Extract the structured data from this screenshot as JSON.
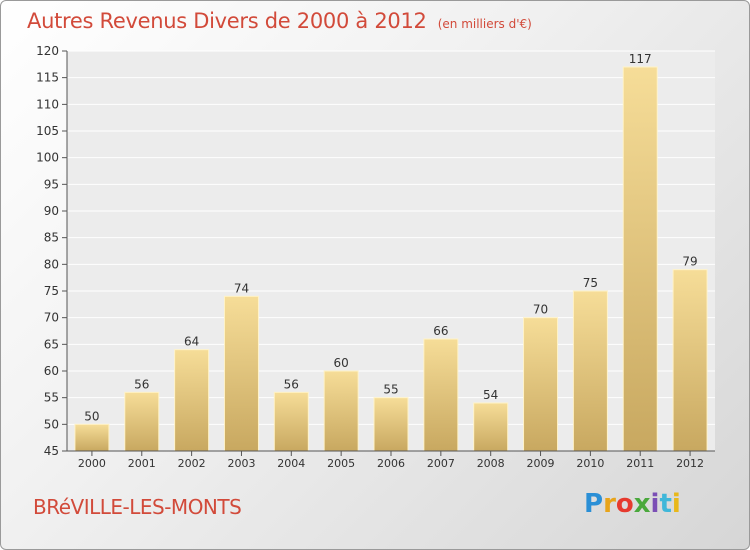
{
  "header": {
    "title": "Autres Revenus Divers de 2000 à 2012",
    "unit": "(en milliers d'€)"
  },
  "footer": {
    "location": "BRéVILLE-LES-MONTS",
    "logo_letters": [
      "P",
      "r",
      "o",
      "x",
      "i",
      "t",
      "i"
    ],
    "logo_colors": [
      "#2a8fd6",
      "#e8a41a",
      "#e63a2e",
      "#4aa83c",
      "#7b4fb5",
      "#3fb7d9",
      "#e8b81a"
    ]
  },
  "colors": {
    "bar_light": "#f6dd98",
    "bar_dark": "#c8a860",
    "plot_bg": "#ececec",
    "grid": "#ffffff",
    "text": "#333333"
  },
  "chart_data": {
    "type": "bar",
    "categories": [
      "2000",
      "2001",
      "2002",
      "2003",
      "2004",
      "2005",
      "2006",
      "2007",
      "2008",
      "2009",
      "2010",
      "2011",
      "2012"
    ],
    "values": [
      50,
      56,
      64,
      74,
      56,
      60,
      55,
      66,
      54,
      70,
      75,
      117,
      79
    ],
    "ylim": [
      45,
      120
    ],
    "yticks": [
      45,
      50,
      55,
      60,
      65,
      70,
      75,
      80,
      85,
      90,
      95,
      100,
      105,
      110,
      115,
      120
    ],
    "grid": true,
    "data_labels": true
  }
}
